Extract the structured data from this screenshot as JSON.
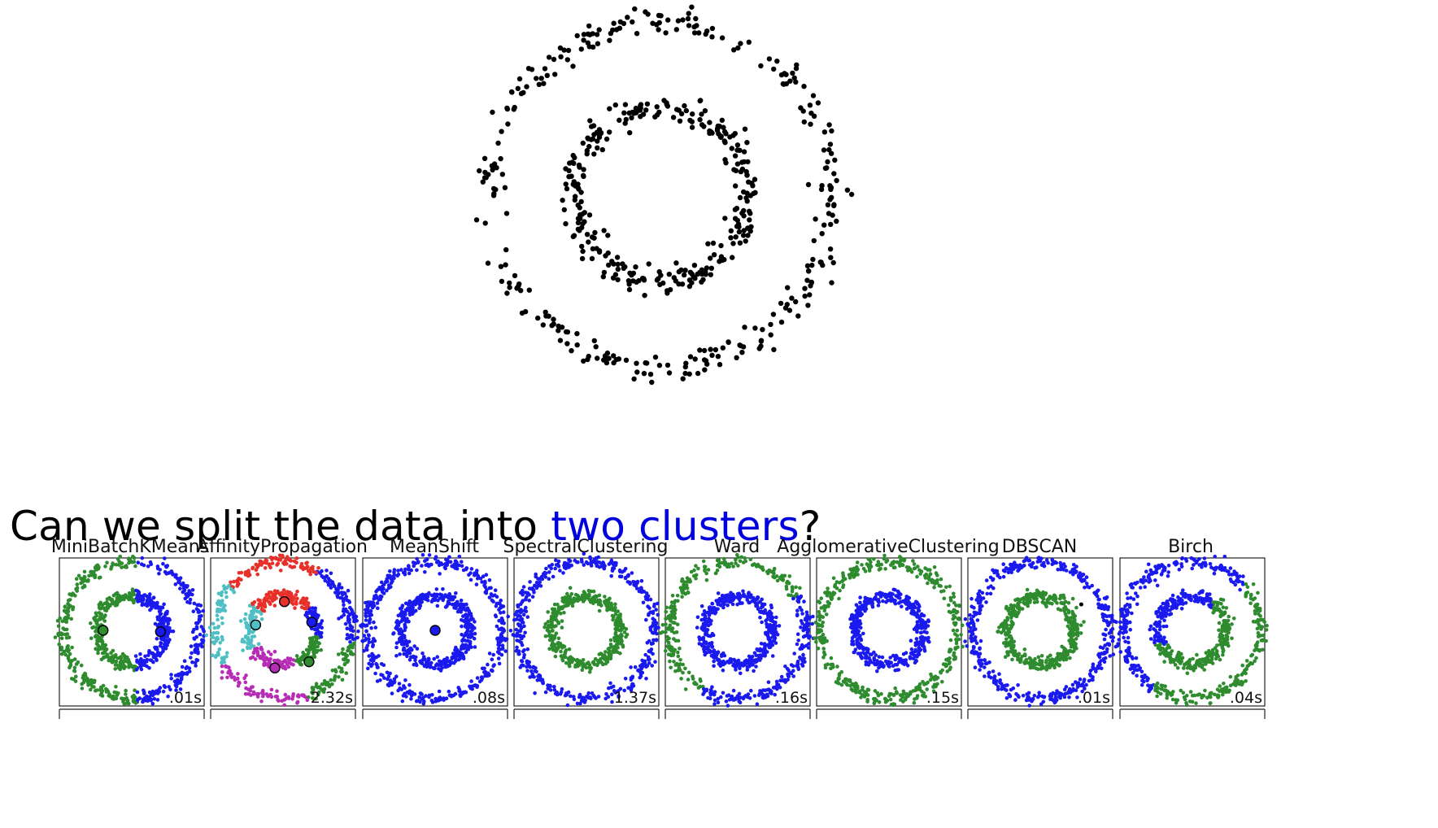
{
  "question": {
    "prefix": "Can we split the data into ",
    "highlight": "two clusters",
    "suffix": "?"
  },
  "colors": {
    "blue": "#1a1aee",
    "green": "#2e8b2e",
    "red": "#e8302a",
    "cyan": "#4fbfc4",
    "magenta": "#b72cb5",
    "black": "#000000"
  },
  "chart_data": [
    {
      "type": "scatter",
      "title": "",
      "description_units": "two concentric rings of points",
      "series": [
        {
          "ring": "outer",
          "radius": 1.0,
          "noise": 0.04,
          "points": 300
        },
        {
          "ring": "inner",
          "radius": 0.5,
          "noise": 0.04,
          "points": 300
        }
      ],
      "grid": false,
      "axes": false
    },
    {
      "type": "scatter",
      "panels": [
        {
          "title": "MiniBatchKMeans",
          "time": ".01s",
          "method": "kmeans"
        },
        {
          "title": "AffinityPropagation",
          "time": "2.32s",
          "method": "affinity"
        },
        {
          "title": "MeanShift",
          "time": ".08s",
          "method": "meanshift"
        },
        {
          "title": "SpectralClustering",
          "time": "1.37s",
          "method": "spectral"
        },
        {
          "title": "Ward",
          "time": ".16s",
          "method": "ward"
        },
        {
          "title": "AgglomerativeClustering",
          "time": ".15s",
          "method": "agglomerative"
        },
        {
          "title": "DBSCAN",
          "time": ".01s",
          "method": "dbscan"
        },
        {
          "title": "Birch",
          "time": ".04s",
          "method": "birch"
        }
      ]
    }
  ]
}
